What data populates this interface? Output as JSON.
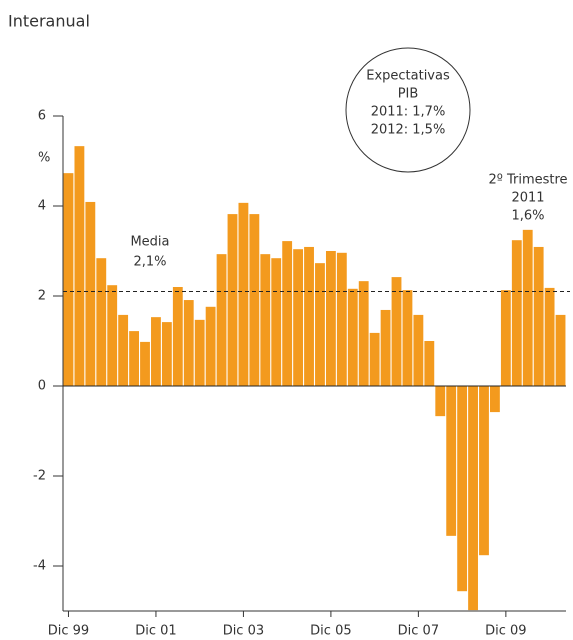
{
  "chart_data": {
    "type": "bar",
    "subtitle": "Interanual",
    "y_unit": "%",
    "categories": [
      "Dic 99",
      null,
      null,
      null,
      null,
      null,
      null,
      null,
      "Dic 01",
      null,
      null,
      null,
      null,
      null,
      null,
      null,
      "Dic 03",
      null,
      null,
      null,
      null,
      null,
      null,
      null,
      "Dic 05",
      null,
      null,
      null,
      null,
      null,
      null,
      null,
      "Dic 07",
      null,
      null,
      null,
      null,
      null,
      null,
      null,
      "Dic 09",
      null,
      null,
      null,
      null,
      null
    ],
    "values": [
      4.73,
      5.33,
      4.09,
      2.84,
      2.24,
      1.58,
      1.22,
      0.98,
      1.53,
      1.42,
      2.2,
      1.91,
      1.47,
      1.76,
      2.93,
      3.82,
      4.07,
      3.82,
      2.93,
      2.84,
      3.22,
      3.04,
      3.09,
      2.73,
      3.0,
      2.96,
      2.16,
      2.33,
      1.18,
      1.69,
      2.42,
      2.13,
      1.58,
      1.0,
      -0.67,
      -3.33,
      -4.56,
      -4.98,
      -3.76,
      -0.58,
      2.13,
      3.24,
      3.47,
      3.09,
      2.18,
      1.58
    ],
    "color": "#f39a1e",
    "ylim": [
      -5,
      6
    ],
    "yticks": [
      -4,
      -2,
      0,
      2,
      4,
      6
    ],
    "mean": {
      "value": 2.1,
      "name": "Media",
      "label": "2,1%"
    },
    "circle_note": [
      "Expectativas",
      "PIB",
      "2011: 1,7%",
      "2012: 1,5%"
    ],
    "last_note": [
      "2º Trimestre",
      "2011",
      "1,6%"
    ]
  }
}
